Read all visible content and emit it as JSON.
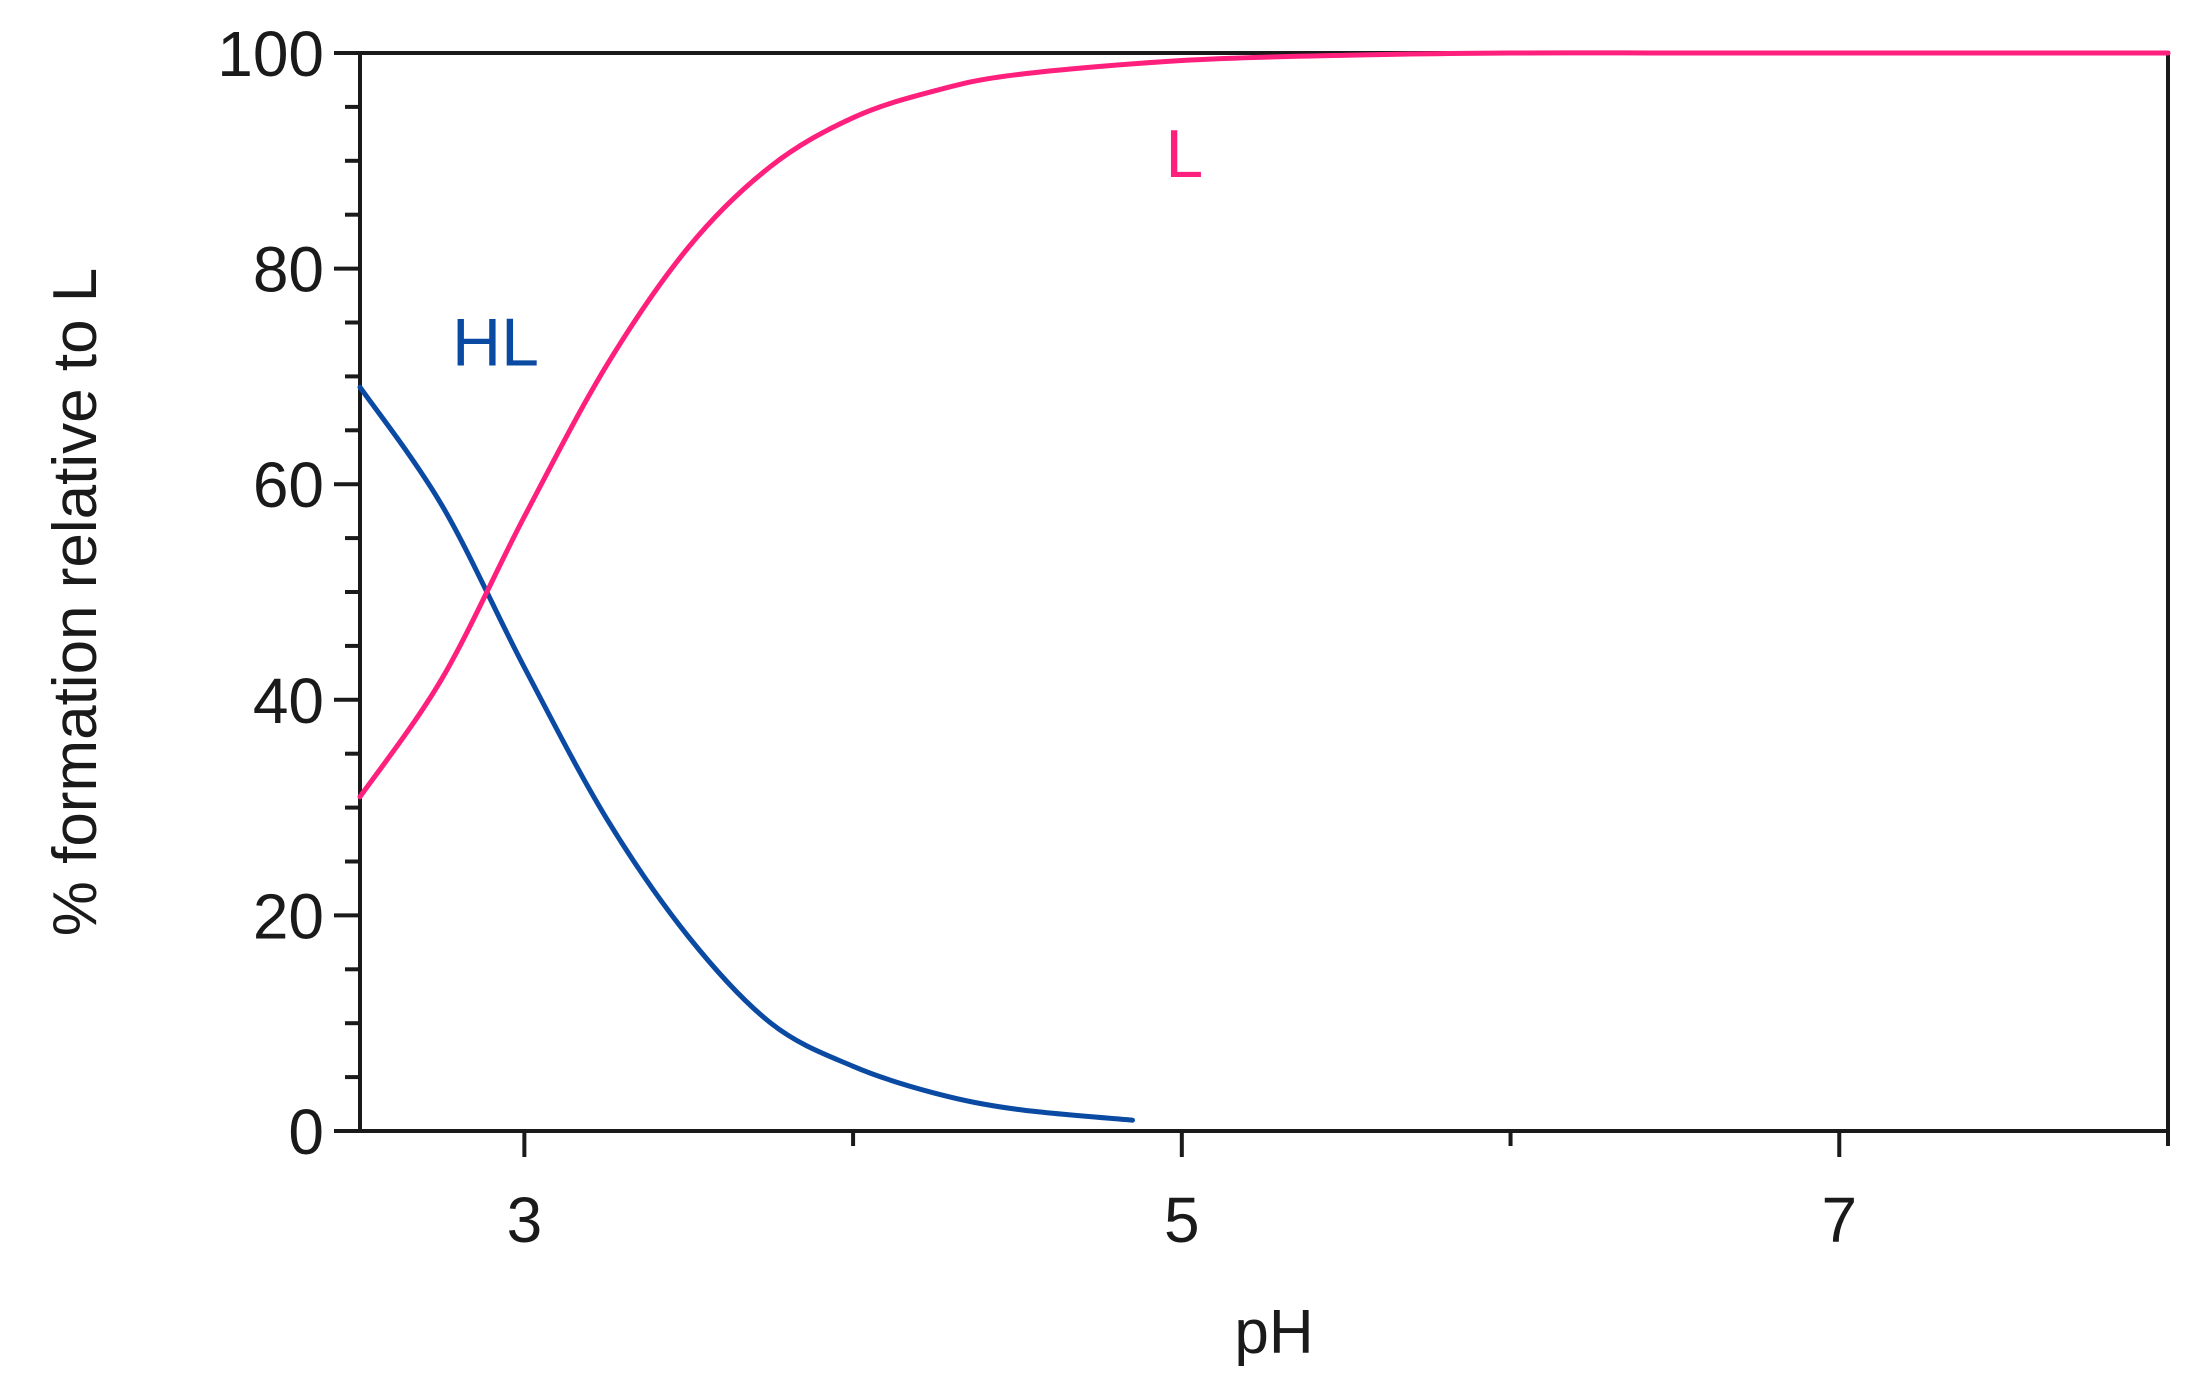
{
  "chart_data": {
    "type": "line",
    "title": "",
    "xlabel": "pH",
    "ylabel": "% formation relative to L",
    "xlim": [
      2.5,
      8.0
    ],
    "ylim": [
      0,
      100
    ],
    "x_major_ticks": [
      3,
      5,
      7
    ],
    "x_minor_ticks": [
      4,
      6,
      8
    ],
    "y_major_ticks": [
      0,
      20,
      40,
      60,
      80,
      100
    ],
    "y_minor_step": 5,
    "x_tick_labels": [
      "3",
      "5",
      "7"
    ],
    "y_tick_labels": [
      "0",
      "20",
      "40",
      "60",
      "80",
      "100"
    ],
    "grid": false,
    "series": [
      {
        "name": "HL",
        "color": "#0b4aa2",
        "x": [
          2.5,
          2.75,
          3.0,
          3.25,
          3.5,
          3.75,
          4.0,
          4.25,
          4.5,
          4.85
        ],
        "values": [
          69,
          58,
          43,
          29,
          18,
          10,
          6,
          3.5,
          2,
          1
        ]
      },
      {
        "name": "L",
        "color": "#ff1f7c",
        "x": [
          2.5,
          2.75,
          3.0,
          3.25,
          3.5,
          3.75,
          4.0,
          4.25,
          4.5,
          5.0,
          5.5,
          6.0,
          6.5,
          7.0,
          7.5,
          8.0
        ],
        "values": [
          31,
          42,
          57,
          71,
          82,
          89.5,
          94,
          96.5,
          98,
          99.3,
          99.8,
          100,
          100,
          100,
          100,
          100
        ]
      }
    ],
    "annotations": [
      {
        "text": "HL",
        "x": 2.78,
        "y": 71,
        "color": "#0b4aa2"
      },
      {
        "text": "L",
        "x": 4.95,
        "y": 88.5,
        "color": "#ff1f7c"
      }
    ]
  }
}
